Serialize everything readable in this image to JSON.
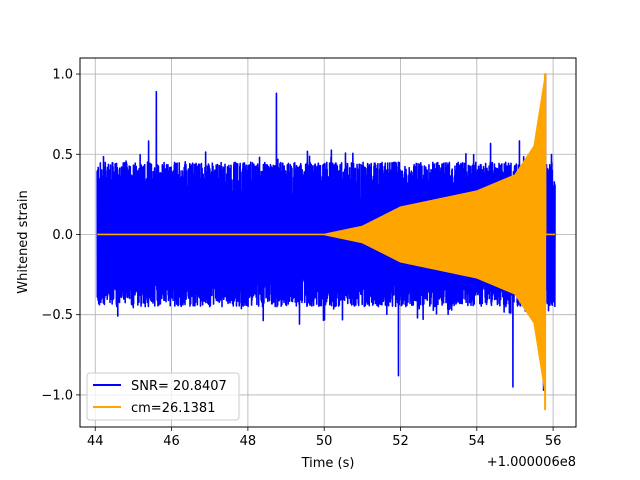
{
  "chart_data": {
    "type": "line",
    "xlabel": "Time (s)",
    "ylabel": "Whitened strain",
    "x_offset_label": "+1.000006e8",
    "xlim": [
      43.6,
      56.6
    ],
    "ylim": [
      -1.2,
      1.1
    ],
    "x_ticks": [
      44,
      46,
      48,
      50,
      52,
      54,
      56
    ],
    "x_tick_labels": [
      "44",
      "46",
      "48",
      "50",
      "52",
      "54",
      "56"
    ],
    "y_ticks": [
      -1.0,
      -0.5,
      0.0,
      0.5,
      1.0
    ],
    "y_tick_labels": [
      "−1.0",
      "−0.5",
      "0.0",
      "0.5",
      "1.0"
    ],
    "grid": true,
    "legend_position": "lower-left",
    "series": [
      {
        "name": "SNR= 20.8407",
        "color": "#0000ff",
        "description_values": {
          "x_range": [
            44.05,
            56.05
          ],
          "typical_envelope": 0.45,
          "notable_peaks": [
            {
              "x": 45.6,
              "y": 0.89
            },
            {
              "x": 48.75,
              "y": 0.88
            },
            {
              "x": 55.8,
              "y": 1.0
            },
            {
              "x": 51.95,
              "y": -0.88
            },
            {
              "x": 54.95,
              "y": -0.95
            },
            {
              "x": 55.75,
              "y": -0.97
            }
          ]
        }
      },
      {
        "name": "cm=26.1381",
        "color": "#ffa500",
        "description_values": {
          "x_range": [
            44.05,
            56.05
          ],
          "chirp_start": 50.0,
          "merger_time": 55.8,
          "amplitude_points": [
            {
              "x": 50.0,
              "a": 0.0
            },
            {
              "x": 51.0,
              "a": 0.05
            },
            {
              "x": 52.0,
              "a": 0.17
            },
            {
              "x": 53.0,
              "a": 0.22
            },
            {
              "x": 54.0,
              "a": 0.27
            },
            {
              "x": 55.0,
              "a": 0.37
            },
            {
              "x": 55.5,
              "a": 0.55
            },
            {
              "x": 55.8,
              "a": 1.0
            }
          ],
          "min_at_merger": -1.09
        }
      }
    ]
  }
}
